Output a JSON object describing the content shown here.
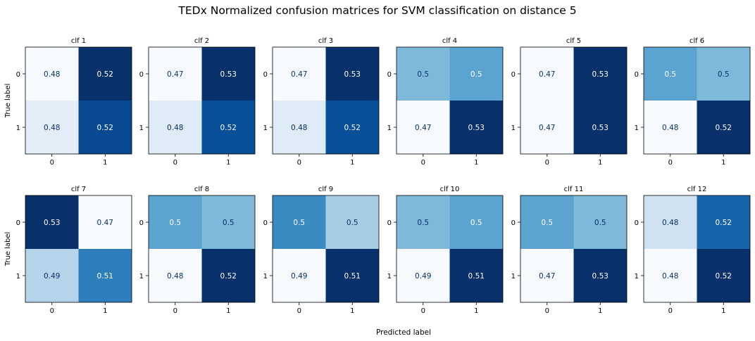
{
  "title": "TEDx Normalized confusion matrices for SVM classification on distance 5",
  "xlabel": "Predicted label",
  "ylabel": "True label",
  "colormap": [
    "#f7fbff",
    "#deebf7",
    "#c6dbef",
    "#9ecae1",
    "#6baed6",
    "#4292c6",
    "#2171b5",
    "#08519c",
    "#08306b"
  ],
  "chart_data": {
    "type": "heatmap",
    "title": "TEDx Normalized confusion matrices for SVM classification on distance 5",
    "xlabel": "Predicted label",
    "ylabel": "True label",
    "x_ticks": [
      "0",
      "1"
    ],
    "y_ticks": [
      "0",
      "1"
    ],
    "colorbar": false,
    "matrices": [
      {
        "name": "clf 1",
        "labels": [
          [
            "0.48",
            "0.52"
          ],
          [
            "0.48",
            "0.52"
          ]
        ],
        "shade": [
          [
            0.0,
            1.0
          ],
          [
            0.1,
            0.9
          ]
        ]
      },
      {
        "name": "clf 2",
        "labels": [
          [
            "0.47",
            "0.53"
          ],
          [
            "0.48",
            "0.52"
          ]
        ],
        "shade": [
          [
            0.0,
            1.0
          ],
          [
            0.12,
            0.88
          ]
        ]
      },
      {
        "name": "clf 3",
        "labels": [
          [
            "0.47",
            "0.53"
          ],
          [
            "0.48",
            "0.52"
          ]
        ],
        "shade": [
          [
            0.0,
            1.0
          ],
          [
            0.12,
            0.88
          ]
        ]
      },
      {
        "name": "clf 4",
        "labels": [
          [
            "0.5",
            "0.5"
          ],
          [
            "0.47",
            "0.53"
          ]
        ],
        "shade": [
          [
            0.45,
            0.55
          ],
          [
            0.0,
            1.0
          ]
        ]
      },
      {
        "name": "clf 5",
        "labels": [
          [
            "0.47",
            "0.53"
          ],
          [
            "0.47",
            "0.53"
          ]
        ],
        "shade": [
          [
            0.0,
            1.0
          ],
          [
            0.0,
            1.0
          ]
        ]
      },
      {
        "name": "clf 6",
        "labels": [
          [
            "0.5",
            "0.5"
          ],
          [
            "0.48",
            "0.52"
          ]
        ],
        "shade": [
          [
            0.55,
            0.45
          ],
          [
            0.0,
            1.0
          ]
        ]
      },
      {
        "name": "clf 7",
        "labels": [
          [
            "0.53",
            "0.47"
          ],
          [
            "0.49",
            "0.51"
          ]
        ],
        "shade": [
          [
            1.0,
            0.0
          ],
          [
            0.3,
            0.7
          ]
        ]
      },
      {
        "name": "clf 8",
        "labels": [
          [
            "0.5",
            "0.5"
          ],
          [
            "0.48",
            "0.52"
          ]
        ],
        "shade": [
          [
            0.55,
            0.45
          ],
          [
            0.0,
            1.0
          ]
        ]
      },
      {
        "name": "clf 9",
        "labels": [
          [
            "0.5",
            "0.5"
          ],
          [
            "0.49",
            "0.51"
          ]
        ],
        "shade": [
          [
            0.65,
            0.35
          ],
          [
            0.0,
            1.0
          ]
        ]
      },
      {
        "name": "clf 10",
        "labels": [
          [
            "0.5",
            "0.5"
          ],
          [
            "0.49",
            "0.51"
          ]
        ],
        "shade": [
          [
            0.45,
            0.55
          ],
          [
            0.0,
            1.0
          ]
        ]
      },
      {
        "name": "clf 11",
        "labels": [
          [
            "0.5",
            "0.5"
          ],
          [
            "0.47",
            "0.53"
          ]
        ],
        "shade": [
          [
            0.55,
            0.45
          ],
          [
            0.0,
            1.0
          ]
        ]
      },
      {
        "name": "clf 12",
        "labels": [
          [
            "0.48",
            "0.52"
          ],
          [
            "0.48",
            "0.52"
          ]
        ],
        "shade": [
          [
            0.2,
            0.8
          ],
          [
            0.0,
            1.0
          ]
        ]
      }
    ]
  }
}
